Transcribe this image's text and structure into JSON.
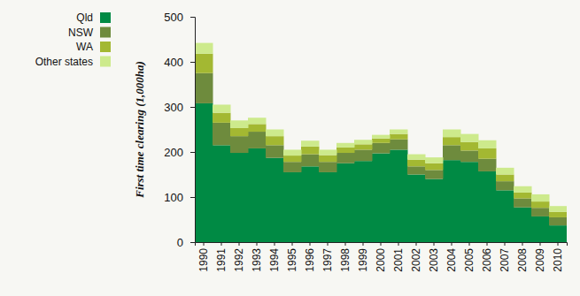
{
  "chart_data": {
    "type": "bar",
    "stacked": true,
    "legend": "top-left",
    "y_label": "First time clearing (1,000ha)",
    "categories": [
      "1990",
      "1991",
      "1992",
      "1993",
      "1994",
      "1995",
      "1996",
      "1997",
      "1998",
      "1999",
      "2000",
      "2001",
      "2002",
      "2003",
      "2004",
      "2005",
      "2006",
      "2007",
      "2008",
      "2009",
      "2010"
    ],
    "series": [
      {
        "name": "Qld",
        "color": "#008a44",
        "values": [
          308,
          215,
          198,
          208,
          187,
          155,
          168,
          155,
          175,
          180,
          197,
          205,
          150,
          140,
          182,
          178,
          157,
          115,
          77,
          57,
          37
        ]
      },
      {
        "name": "NSW",
        "color": "#6e8b3d",
        "values": [
          67,
          50,
          37,
          37,
          28,
          23,
          27,
          23,
          23,
          25,
          23,
          23,
          18,
          20,
          33,
          25,
          28,
          20,
          20,
          19,
          18
        ]
      },
      {
        "name": "WA",
        "color": "#a3b832",
        "values": [
          43,
          22,
          18,
          17,
          20,
          14,
          17,
          15,
          12,
          12,
          10,
          12,
          15,
          15,
          18,
          19,
          23,
          15,
          13,
          14,
          12
        ]
      },
      {
        "name": "Other states",
        "color": "#cdea8c",
        "values": [
          24,
          18,
          17,
          14,
          15,
          13,
          13,
          12,
          10,
          10,
          8,
          10,
          12,
          13,
          17,
          18,
          18,
          15,
          14,
          16,
          13
        ]
      }
    ],
    "ylim": [
      0,
      500
    ],
    "yticks": [
      0,
      100,
      200,
      300,
      400,
      500
    ]
  }
}
